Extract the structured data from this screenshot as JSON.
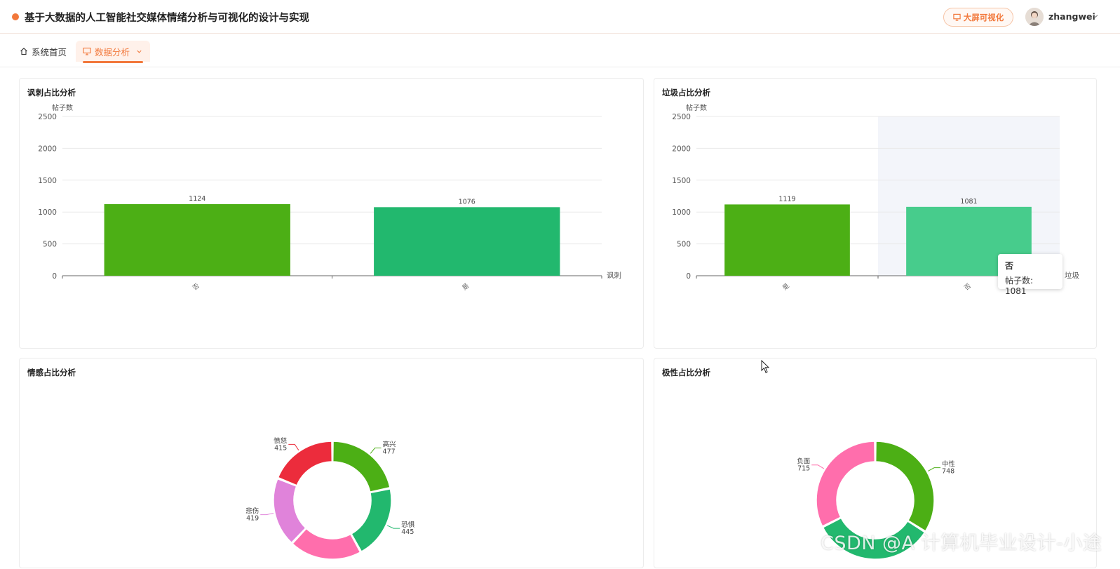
{
  "header": {
    "title": "基于大数据的人工智能社交媒体情绪分析与可视化的设计与实现",
    "bigscreen_label": "大屏可视化",
    "username": "zhangwei"
  },
  "nav": {
    "home_label": "系统首页",
    "analysis_label": "数据分析"
  },
  "watermark": "CSDN @A 计算机毕业设计-小途",
  "tooltip": {
    "title": "否",
    "label": "帖子数:",
    "value": "1081"
  },
  "chart_data": [
    {
      "type": "bar",
      "title": "讽刺占比分析",
      "ylabel": "帖子数",
      "xlabel": "讽刺",
      "categories": [
        "否",
        "是"
      ],
      "values": [
        1124,
        1076
      ],
      "ylim": [
        0,
        2500
      ],
      "yticks": [
        0,
        500,
        1000,
        1500,
        2000,
        2500
      ],
      "colors": [
        "#4caf15",
        "#22b86e"
      ],
      "grid": true
    },
    {
      "type": "bar",
      "title": "垃圾占比分析",
      "ylabel": "帖子数",
      "xlabel": "垃圾",
      "categories": [
        "是",
        "否"
      ],
      "values": [
        1119,
        1081
      ],
      "ylim": [
        0,
        2500
      ],
      "yticks": [
        0,
        500,
        1000,
        1500,
        2000,
        2500
      ],
      "colors": [
        "#4caf15",
        "#47cc8c"
      ],
      "grid": true
    },
    {
      "type": "pie",
      "title": "情感占比分析",
      "labels": [
        "高兴",
        "恐惧",
        "",
        "悲伤",
        "愤怒"
      ],
      "values": [
        477,
        445,
        440,
        419,
        415
      ],
      "colors": [
        "#4caf15",
        "#22b86e",
        "#ff6eac",
        "#e083da",
        "#ec2c3c"
      ],
      "donut": true
    },
    {
      "type": "pie",
      "title": "极性占比分析",
      "labels": [
        "中性",
        "",
        "负面"
      ],
      "values": [
        748,
        740,
        715
      ],
      "colors": [
        "#4caf15",
        "#22b86e",
        "#ff6eac"
      ],
      "donut": true
    }
  ]
}
